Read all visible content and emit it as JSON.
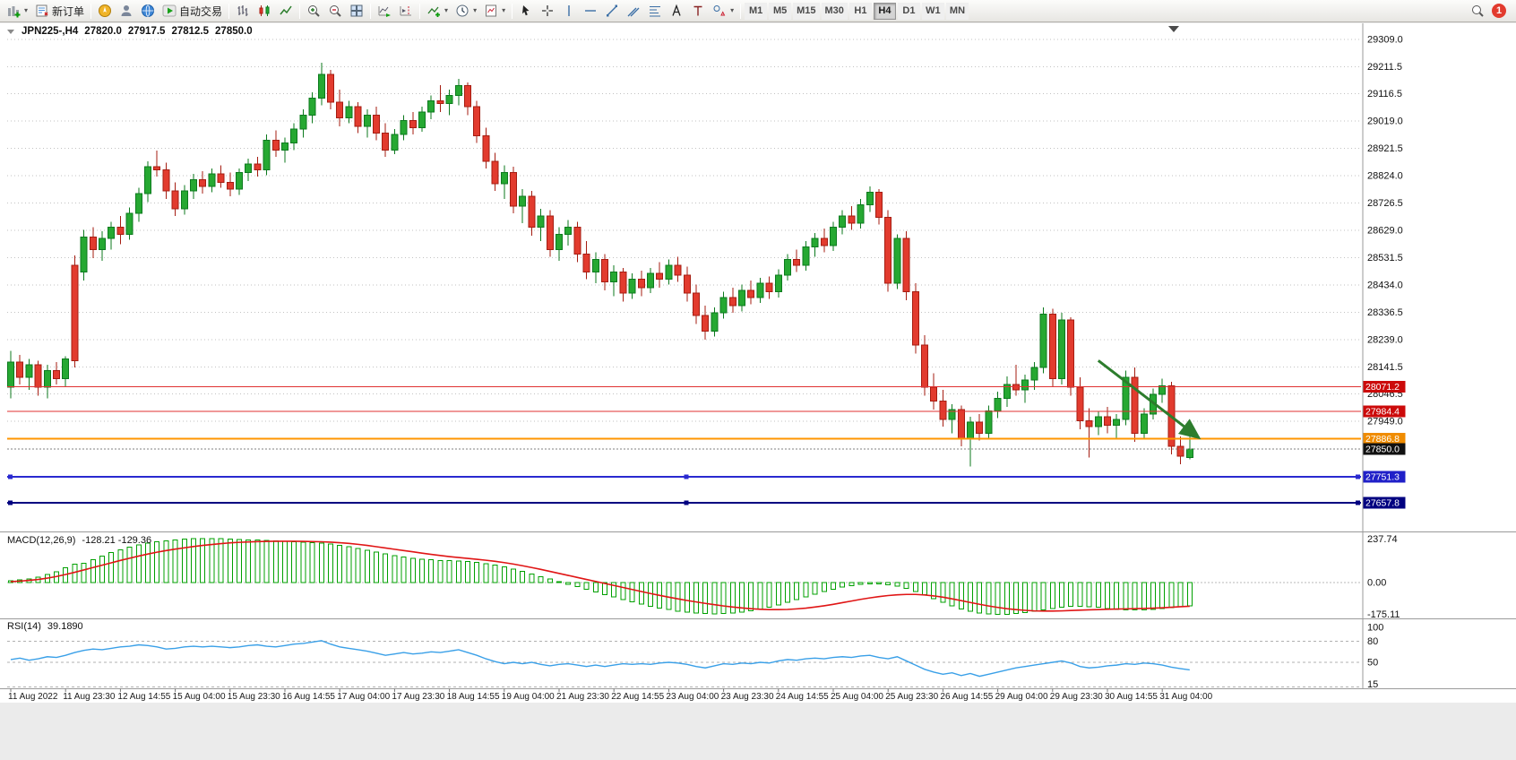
{
  "toolbar": {
    "new_order_label": "新订单",
    "autotrade_label": "自动交易",
    "timeframes": [
      "M1",
      "M5",
      "M15",
      "M30",
      "H1",
      "H4",
      "D1",
      "W1",
      "MN"
    ],
    "active_timeframe": "H4",
    "badge_count": "1"
  },
  "chart": {
    "symbol_period": "JPN225-,H4",
    "ohlc": {
      "open": "27820.0",
      "high": "27917.5",
      "low": "27812.5",
      "close": "27850.0"
    },
    "price_axis_labels": [
      "29309.0",
      "29211.5",
      "29116.5",
      "29019.0",
      "28921.5",
      "28824.0",
      "28726.5",
      "28629.0",
      "28531.5",
      "28434.0",
      "28336.5",
      "28239.0",
      "28141.5",
      "28046.5",
      "27949.0"
    ],
    "levels": [
      {
        "label": "28071.2",
        "value": 28071.2,
        "line_color": "#e03232",
        "tag_bg": "#cc0a0a",
        "width": 1,
        "dash": "",
        "handles": false
      },
      {
        "label": "27984.4",
        "value": 27984.4,
        "line_color": "#e03232",
        "tag_bg": "#cc0a0a",
        "width": 1,
        "dash": "",
        "handles": false
      },
      {
        "label": "27886.8",
        "value": 27886.8,
        "line_color": "#ff9500",
        "tag_bg": "#f08c00",
        "width": 2,
        "dash": "",
        "handles": false
      },
      {
        "label": "27850.0",
        "value": 27850.0,
        "line_color": "#808080",
        "tag_bg": "#111111",
        "width": 1,
        "dash": "2 2",
        "handles": false
      },
      {
        "label": "27751.3",
        "value": 27751.3,
        "line_color": "#2a2ad0",
        "tag_bg": "#2020c8",
        "width": 2,
        "dash": "",
        "handles": true
      },
      {
        "label": "27657.8",
        "value": 27657.8,
        "line_color": "#000080",
        "tag_bg": "#000080",
        "width": 2,
        "dash": "",
        "handles": true
      }
    ],
    "arrow": {
      "from_index": 119,
      "from_price": 28165,
      "to_index": 130,
      "to_price": 27890,
      "color": "#2d7d2d"
    }
  },
  "chart_data": {
    "type": "candlestick",
    "symbol": "JPN225-",
    "period": "H4",
    "title": "JPN225-,H4 27820.0 27917.5 27812.5 27850.0",
    "label_every": 6,
    "x_labels": [
      "11 Aug 2022",
      "11 Aug 23:30",
      "12 Aug 14:55",
      "15 Aug 04:00",
      "15 Aug 23:30",
      "16 Aug 14:55",
      "17 Aug 04:00",
      "17 Aug 23:30",
      "18 Aug 14:55",
      "19 Aug 04:00",
      "21 Aug 23:30",
      "22 Aug 14:55",
      "23 Aug 04:00",
      "23 Aug 23:30",
      "24 Aug 14:55",
      "25 Aug 04:00",
      "25 Aug 23:30",
      "26 Aug 14:55",
      "29 Aug 04:00",
      "29 Aug 23:30",
      "30 Aug 14:55",
      "31 Aug 04:00"
    ],
    "colors": {
      "bull_fill": "#26a832",
      "bull_border": "#0c7a1e",
      "bear_fill": "#e23b2e",
      "bear_border": "#a51d12",
      "macd_hist": "#00a000",
      "macd_signal": "#e01515",
      "rsi_line": "#3aa0e8",
      "grid": "#c2c2c2"
    },
    "candles": [
      [
        28070,
        28200,
        28030,
        28160
      ],
      [
        28160,
        28185,
        28080,
        28105
      ],
      [
        28105,
        28170,
        28060,
        28150
      ],
      [
        28150,
        28165,
        28040,
        28070
      ],
      [
        28070,
        28150,
        28030,
        28130
      ],
      [
        28130,
        28160,
        28080,
        28100
      ],
      [
        28100,
        28180,
        28070,
        28170
      ],
      [
        28505,
        28540,
        28140,
        28165
      ],
      [
        28480,
        28630,
        28450,
        28605
      ],
      [
        28605,
        28640,
        28530,
        28560
      ],
      [
        28560,
        28625,
        28520,
        28600
      ],
      [
        28600,
        28660,
        28560,
        28640
      ],
      [
        28640,
        28680,
        28580,
        28615
      ],
      [
        28615,
        28710,
        28595,
        28690
      ],
      [
        28690,
        28780,
        28660,
        28760
      ],
      [
        28760,
        28875,
        28730,
        28855
      ],
      [
        28855,
        28913,
        28820,
        28845
      ],
      [
        28845,
        28870,
        28740,
        28770
      ],
      [
        28770,
        28800,
        28680,
        28705
      ],
      [
        28705,
        28790,
        28685,
        28770
      ],
      [
        28770,
        28830,
        28740,
        28810
      ],
      [
        28810,
        28840,
        28760,
        28785
      ],
      [
        28785,
        28850,
        28765,
        28830
      ],
      [
        28830,
        28860,
        28780,
        28800
      ],
      [
        28800,
        28835,
        28750,
        28775
      ],
      [
        28775,
        28850,
        28755,
        28835
      ],
      [
        28835,
        28885,
        28805,
        28865
      ],
      [
        28865,
        28890,
        28820,
        28845
      ],
      [
        28845,
        28970,
        28825,
        28950
      ],
      [
        28950,
        28985,
        28890,
        28915
      ],
      [
        28915,
        28960,
        28870,
        28940
      ],
      [
        28940,
        29010,
        28915,
        28990
      ],
      [
        28990,
        29060,
        28960,
        29040
      ],
      [
        29040,
        29120,
        29010,
        29100
      ],
      [
        29100,
        29226,
        29075,
        29185
      ],
      [
        29185,
        29200,
        29060,
        29085
      ],
      [
        29085,
        29130,
        29000,
        29030
      ],
      [
        29030,
        29090,
        29010,
        29070
      ],
      [
        29070,
        29085,
        28975,
        29000
      ],
      [
        29000,
        29060,
        28960,
        29040
      ],
      [
        29040,
        29070,
        28950,
        28975
      ],
      [
        28975,
        29010,
        28890,
        28915
      ],
      [
        28915,
        28990,
        28900,
        28970
      ],
      [
        28970,
        29040,
        28950,
        29020
      ],
      [
        29020,
        29050,
        28970,
        28995
      ],
      [
        28995,
        29070,
        28980,
        29050
      ],
      [
        29050,
        29110,
        29025,
        29090
      ],
      [
        29090,
        29146,
        29050,
        29080
      ],
      [
        29080,
        29130,
        29040,
        29110
      ],
      [
        29110,
        29168,
        29075,
        29145
      ],
      [
        29145,
        29155,
        29040,
        29070
      ],
      [
        29070,
        29090,
        28940,
        28965
      ],
      [
        28965,
        28995,
        28850,
        28875
      ],
      [
        28875,
        28905,
        28770,
        28795
      ],
      [
        28795,
        28860,
        28740,
        28835
      ],
      [
        28835,
        28855,
        28690,
        28715
      ],
      [
        28715,
        28775,
        28655,
        28750
      ],
      [
        28750,
        28770,
        28610,
        28640
      ],
      [
        28640,
        28705,
        28590,
        28680
      ],
      [
        28680,
        28700,
        28535,
        28560
      ],
      [
        28560,
        28640,
        28520,
        28615
      ],
      [
        28615,
        28665,
        28575,
        28640
      ],
      [
        28640,
        28660,
        28515,
        28545
      ],
      [
        28545,
        28590,
        28455,
        28480
      ],
      [
        28480,
        28550,
        28440,
        28525
      ],
      [
        28525,
        28545,
        28415,
        28445
      ],
      [
        28445,
        28505,
        28395,
        28480
      ],
      [
        28480,
        28495,
        28375,
        28405
      ],
      [
        28405,
        28475,
        28385,
        28455
      ],
      [
        28455,
        28485,
        28395,
        28425
      ],
      [
        28425,
        28495,
        28405,
        28475
      ],
      [
        28475,
        28515,
        28425,
        28455
      ],
      [
        28455,
        28525,
        28435,
        28505
      ],
      [
        28505,
        28535,
        28445,
        28470
      ],
      [
        28470,
        28500,
        28375,
        28405
      ],
      [
        28405,
        28435,
        28295,
        28325
      ],
      [
        28325,
        28360,
        28240,
        28270
      ],
      [
        28270,
        28355,
        28250,
        28335
      ],
      [
        28335,
        28410,
        28315,
        28390
      ],
      [
        28390,
        28425,
        28335,
        28360
      ],
      [
        28360,
        28435,
        28340,
        28415
      ],
      [
        28415,
        28450,
        28365,
        28390
      ],
      [
        28390,
        28460,
        28370,
        28440
      ],
      [
        28440,
        28465,
        28385,
        28410
      ],
      [
        28410,
        28490,
        28390,
        28470
      ],
      [
        28470,
        28545,
        28450,
        28525
      ],
      [
        28525,
        28560,
        28480,
        28505
      ],
      [
        28505,
        28590,
        28485,
        28570
      ],
      [
        28570,
        28620,
        28535,
        28600
      ],
      [
        28600,
        28635,
        28550,
        28575
      ],
      [
        28575,
        28660,
        28555,
        28640
      ],
      [
        28640,
        28700,
        28615,
        28680
      ],
      [
        28680,
        28715,
        28630,
        28655
      ],
      [
        28655,
        28740,
        28635,
        28720
      ],
      [
        28720,
        28785,
        28695,
        28765
      ],
      [
        28765,
        28775,
        28650,
        28675
      ],
      [
        28675,
        28700,
        28410,
        28440
      ],
      [
        28440,
        28615,
        28420,
        28600
      ],
      [
        28600,
        28625,
        28380,
        28410
      ],
      [
        28410,
        28440,
        28190,
        28220
      ],
      [
        28220,
        28255,
        28040,
        28070
      ],
      [
        28070,
        28120,
        27990,
        28020
      ],
      [
        28020,
        28060,
        27930,
        27955
      ],
      [
        27955,
        28010,
        27905,
        27990
      ],
      [
        27990,
        28005,
        27860,
        27885
      ],
      [
        27885,
        27965,
        27788,
        27945
      ],
      [
        27945,
        27975,
        27880,
        27905
      ],
      [
        27905,
        28005,
        27885,
        27985
      ],
      [
        27985,
        28055,
        27960,
        28030
      ],
      [
        28030,
        28108,
        28000,
        28080
      ],
      [
        28080,
        28150,
        28040,
        28060
      ],
      [
        28060,
        28115,
        28015,
        28095
      ],
      [
        28095,
        28160,
        28060,
        28140
      ],
      [
        28140,
        28355,
        28120,
        28330
      ],
      [
        28330,
        28350,
        28070,
        28100
      ],
      [
        28100,
        28335,
        28080,
        28310
      ],
      [
        28310,
        28320,
        28040,
        28070
      ],
      [
        28070,
        28105,
        27920,
        27950
      ],
      [
        27950,
        27995,
        27820,
        27930
      ],
      [
        27930,
        27985,
        27900,
        27965
      ],
      [
        27965,
        28000,
        27905,
        27935
      ],
      [
        27935,
        27975,
        27890,
        27955
      ],
      [
        27955,
        28130,
        27935,
        28105
      ],
      [
        28105,
        28140,
        27875,
        27905
      ],
      [
        27905,
        27995,
        27885,
        27975
      ],
      [
        27975,
        28065,
        27955,
        28045
      ],
      [
        28045,
        28100,
        28015,
        28075
      ],
      [
        28075,
        28090,
        27830,
        27860
      ],
      [
        27860,
        27895,
        27795,
        27825
      ],
      [
        27820,
        27917.5,
        27812.5,
        27850
      ]
    ],
    "macd": {
      "label": "MACD(12,26,9)",
      "values_label": "-128.21 -129.36",
      "axis": [
        "237.74",
        "0.00",
        "-175.11"
      ],
      "hist": [
        10,
        15,
        20,
        30,
        45,
        60,
        80,
        100,
        105,
        125,
        145,
        163,
        179,
        193,
        205,
        215,
        223,
        229,
        234,
        237,
        239,
        240,
        240,
        239,
        238,
        236,
        234,
        232,
        230,
        228,
        226,
        224,
        220,
        219,
        216,
        211,
        204,
        196,
        187,
        177,
        167,
        157,
        148,
        140,
        133,
        128,
        124,
        121,
        119,
        117,
        114,
        110,
        104,
        96,
        86,
        74,
        61,
        47,
        33,
        19,
        5,
        -9,
        -23,
        -37,
        -51,
        -65,
        -79,
        -93,
        -106,
        -118,
        -129,
        -139,
        -148,
        -156,
        -162,
        -167,
        -170,
        -171,
        -170,
        -167,
        -162,
        -155,
        -146,
        -135,
        -122,
        -108,
        -93,
        -78,
        -63,
        -49,
        -36,
        -25,
        -16,
        -10,
        -7,
        -8,
        -12,
        -20,
        -32,
        -48,
        -67,
        -88,
        -109,
        -128,
        -144,
        -157,
        -166,
        -172,
        -175,
        -174,
        -170,
        -164,
        -157,
        -149,
        -141,
        -135,
        -131,
        -130,
        -132,
        -136,
        -141,
        -146,
        -149,
        -150,
        -149,
        -146,
        -142,
        -137,
        -132,
        -128.21
      ],
      "signal": [
        5,
        8,
        12,
        17,
        24,
        33,
        44,
        56,
        69,
        82,
        95,
        108,
        121,
        133,
        145,
        156,
        166,
        175,
        183,
        190,
        197,
        203,
        208,
        213,
        217,
        220,
        222,
        224,
        225,
        226,
        226,
        226,
        225,
        224,
        223,
        221,
        218,
        214,
        209,
        203,
        196,
        189,
        182,
        175,
        168,
        161,
        154,
        148,
        142,
        137,
        132,
        127,
        122,
        116,
        109,
        101,
        92,
        82,
        72,
        61,
        50,
        39,
        28,
        17,
        6,
        -5,
        -16,
        -27,
        -38,
        -49,
        -60,
        -70,
        -80,
        -89,
        -98,
        -106,
        -114,
        -121,
        -128,
        -134,
        -139,
        -143,
        -146,
        -148,
        -148,
        -147,
        -144,
        -140,
        -134,
        -127,
        -119,
        -110,
        -101,
        -92,
        -84,
        -77,
        -71,
        -67,
        -65,
        -65,
        -68,
        -73,
        -80,
        -89,
        -99,
        -109,
        -119,
        -128,
        -136,
        -143,
        -148,
        -152,
        -155,
        -156,
        -156,
        -155,
        -153,
        -151,
        -149,
        -148,
        -146,
        -145,
        -144,
        -143,
        -142,
        -140,
        -138,
        -135,
        -132,
        -129.36
      ]
    },
    "rsi": {
      "label": "RSI(14)",
      "value_label": "39.1890",
      "axis": [
        "100",
        "80",
        "50",
        "15"
      ],
      "levels": [
        80,
        50,
        15
      ],
      "values": [
        54,
        56,
        53,
        55,
        58,
        57,
        60,
        64,
        67,
        69,
        68,
        70,
        72,
        73,
        75,
        74,
        72,
        69,
        70,
        72,
        73,
        72,
        73,
        72,
        71,
        72,
        74,
        75,
        73,
        72,
        74,
        76,
        77,
        79,
        81,
        76,
        72,
        70,
        68,
        66,
        63,
        60,
        62,
        64,
        62,
        63,
        65,
        64,
        66,
        68,
        64,
        60,
        55,
        51,
        48,
        50,
        48,
        50,
        47,
        45,
        47,
        48,
        46,
        44,
        46,
        44,
        46,
        48,
        47,
        48,
        47,
        49,
        50,
        49,
        47,
        44,
        42,
        45,
        48,
        47,
        49,
        48,
        50,
        49,
        52,
        54,
        53,
        55,
        56,
        55,
        57,
        58,
        57,
        59,
        60,
        57,
        55,
        58,
        52,
        46,
        40,
        36,
        33,
        35,
        31,
        34,
        30,
        33,
        36,
        39,
        42,
        44,
        46,
        48,
        50,
        52,
        49,
        44,
        42,
        43,
        45,
        46,
        48,
        47,
        49,
        48,
        46,
        43,
        41,
        39.19
      ]
    }
  }
}
